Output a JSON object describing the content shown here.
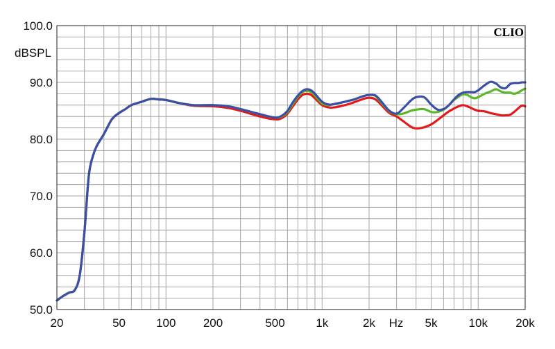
{
  "chart_data": {
    "type": "line",
    "brand": "CLIO",
    "ylabel": "dBSPL",
    "xunit": "Hz",
    "xscale": "log",
    "xlim": [
      20,
      20000
    ],
    "ylim": [
      50,
      100
    ],
    "grid": true,
    "y_ticks": [
      {
        "value": 100,
        "label": "100.0"
      },
      {
        "value": 90,
        "label": "90.0"
      },
      {
        "value": 80,
        "label": "80.0"
      },
      {
        "value": 70,
        "label": "70.0"
      },
      {
        "value": 60,
        "label": "60.0"
      },
      {
        "value": 50,
        "label": "50.0"
      }
    ],
    "x_ticks": [
      {
        "value": 20,
        "label": "20"
      },
      {
        "value": 50,
        "label": "50"
      },
      {
        "value": 100,
        "label": "100"
      },
      {
        "value": 200,
        "label": "200"
      },
      {
        "value": 500,
        "label": "500"
      },
      {
        "value": 1000,
        "label": "1k"
      },
      {
        "value": 2000,
        "label": "2k"
      },
      {
        "value": 5000,
        "label": "5k"
      },
      {
        "value": 10000,
        "label": "10k"
      },
      {
        "value": 20000,
        "label": "20k"
      }
    ],
    "series": [
      {
        "color": "#e31a1c",
        "x": [
          20,
          22,
          24,
          26,
          28,
          30,
          32,
          34,
          36,
          40,
          45,
          50,
          55,
          60,
          70,
          80,
          90,
          100,
          120,
          150,
          200,
          250,
          300,
          400,
          500,
          550,
          600,
          650,
          700,
          750,
          800,
          850,
          900,
          1000,
          1100,
          1200,
          1400,
          1600,
          1800,
          2000,
          2200,
          2400,
          2700,
          3000,
          3300,
          3700,
          4000,
          4500,
          5000,
          5500,
          6000,
          6500,
          7000,
          7500,
          8000,
          8500,
          9000,
          9500,
          10000,
          11000,
          12000,
          13000,
          14000,
          15000,
          16000,
          17000,
          18000,
          19000,
          20000
        ],
        "y": [
          51.6,
          52.4,
          53.0,
          53.4,
          56.0,
          63.5,
          73.5,
          77.0,
          78.8,
          80.9,
          83.5,
          84.6,
          85.3,
          86.0,
          86.6,
          87.1,
          87.0,
          86.9,
          86.4,
          85.9,
          85.8,
          85.5,
          85.0,
          84.0,
          83.5,
          83.7,
          84.5,
          85.8,
          87.0,
          87.8,
          88.0,
          87.8,
          87.2,
          86.0,
          85.6,
          85.6,
          86.0,
          86.5,
          87.0,
          87.3,
          87.0,
          86.0,
          84.6,
          84.0,
          83.2,
          82.2,
          81.9,
          82.1,
          82.6,
          83.4,
          84.2,
          84.9,
          85.4,
          85.8,
          86.0,
          85.8,
          85.5,
          85.2,
          85.0,
          84.9,
          84.6,
          84.4,
          84.2,
          84.2,
          84.3,
          84.8,
          85.4,
          85.9,
          85.8
        ]
      },
      {
        "color": "#5cb82a",
        "x": [
          20,
          22,
          24,
          26,
          28,
          30,
          32,
          34,
          36,
          40,
          45,
          50,
          55,
          60,
          70,
          80,
          90,
          100,
          120,
          150,
          200,
          250,
          300,
          400,
          500,
          550,
          600,
          650,
          700,
          750,
          800,
          850,
          900,
          1000,
          1100,
          1200,
          1400,
          1600,
          1800,
          2000,
          2200,
          2400,
          2700,
          3000,
          3300,
          3700,
          4000,
          4500,
          5000,
          5500,
          6000,
          6500,
          7000,
          7500,
          8000,
          8500,
          9000,
          9500,
          10000,
          11000,
          12000,
          13000,
          14000,
          15000,
          16000,
          17000,
          18000,
          19000,
          20000
        ],
        "y": [
          51.6,
          52.4,
          53.0,
          53.4,
          56.0,
          63.5,
          73.5,
          77.0,
          78.8,
          80.9,
          83.5,
          84.6,
          85.3,
          86.0,
          86.6,
          87.1,
          87.0,
          86.9,
          86.4,
          86.0,
          86.0,
          85.8,
          85.3,
          84.4,
          83.8,
          84.0,
          84.8,
          86.2,
          87.5,
          88.3,
          88.5,
          88.3,
          87.7,
          86.3,
          86.0,
          86.2,
          86.6,
          87.0,
          87.5,
          87.8,
          87.6,
          86.4,
          84.9,
          84.4,
          84.5,
          85.0,
          85.2,
          85.3,
          84.8,
          84.8,
          85.2,
          86.0,
          86.9,
          87.5,
          87.9,
          87.8,
          87.4,
          87.2,
          87.4,
          88.0,
          88.4,
          88.8,
          88.4,
          88.2,
          88.2,
          88.0,
          88.2,
          88.6,
          88.9
        ]
      },
      {
        "color": "#3a4fa8",
        "x": [
          20,
          22,
          24,
          26,
          28,
          30,
          32,
          34,
          36,
          40,
          45,
          50,
          55,
          60,
          70,
          80,
          90,
          100,
          120,
          150,
          200,
          250,
          300,
          400,
          500,
          550,
          600,
          650,
          700,
          750,
          800,
          850,
          900,
          1000,
          1100,
          1200,
          1400,
          1600,
          1800,
          2000,
          2200,
          2400,
          2700,
          3000,
          3300,
          3700,
          4000,
          4500,
          5000,
          5500,
          6000,
          6500,
          7000,
          7500,
          8000,
          8500,
          9000,
          9500,
          10000,
          11000,
          12000,
          13000,
          14000,
          15000,
          16000,
          17000,
          18000,
          19000,
          20000
        ],
        "y": [
          51.6,
          52.4,
          53.0,
          53.4,
          56.0,
          63.5,
          73.5,
          77.0,
          78.8,
          80.9,
          83.5,
          84.6,
          85.3,
          86.0,
          86.6,
          87.1,
          87.0,
          86.9,
          86.4,
          86.0,
          86.0,
          85.8,
          85.3,
          84.4,
          83.8,
          84.1,
          85.0,
          86.5,
          87.7,
          88.5,
          88.8,
          88.6,
          88.0,
          86.6,
          86.1,
          86.2,
          86.6,
          87.0,
          87.5,
          87.8,
          87.7,
          86.6,
          85.0,
          84.5,
          85.4,
          86.8,
          87.4,
          87.4,
          86.1,
          85.2,
          85.3,
          86.0,
          87.0,
          87.8,
          88.2,
          88.3,
          88.3,
          88.3,
          88.6,
          89.5,
          90.1,
          89.8,
          89.1,
          89.0,
          89.7,
          89.9,
          89.9,
          90.0,
          90.0
        ]
      }
    ]
  }
}
